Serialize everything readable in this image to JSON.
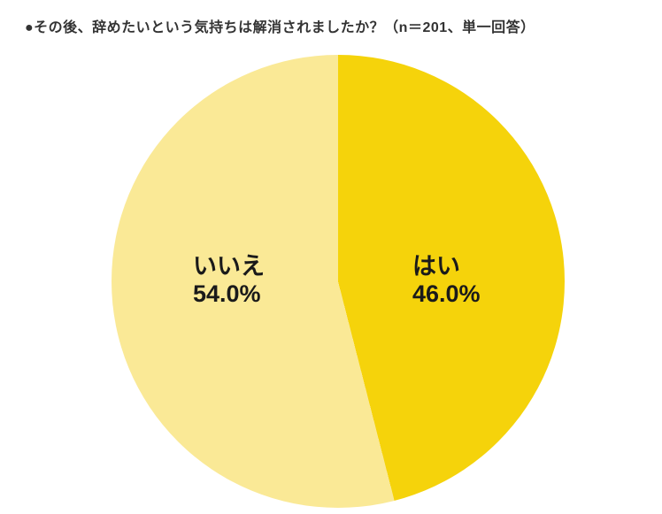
{
  "page": {
    "background": "#ffffff"
  },
  "chart_data": {
    "type": "pie",
    "title": "●その後、辞めたいという気持ちは解消されましたか？（n＝201、単一回答）",
    "n_label": "n＝201",
    "response_type_label": "単一回答",
    "start_angle_deg": 0,
    "direction": "clockwise",
    "legend": "none",
    "labels_inside": true,
    "label_color": "#1a1a1a",
    "title_color": "#333333",
    "slices": [
      {
        "label": "はい",
        "value": 46.0,
        "pct_label": "46.0%",
        "color": "#F5D30B"
      },
      {
        "label": "いいえ",
        "value": 54.0,
        "pct_label": "54.0%",
        "color": "#FAE996"
      }
    ]
  }
}
